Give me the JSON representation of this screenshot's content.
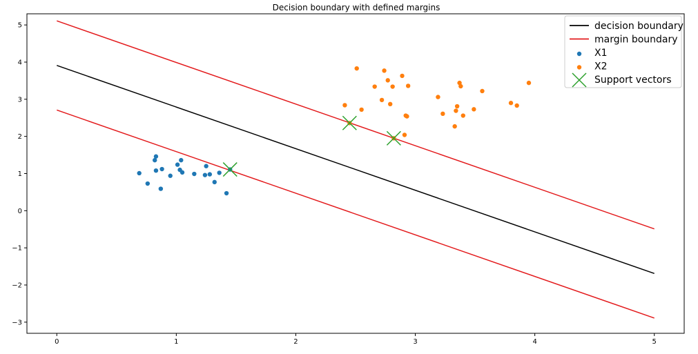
{
  "chart_data": {
    "type": "scatter",
    "title": "Decision boundary with defined margins",
    "xlabel": "",
    "ylabel": "",
    "xlim": [
      -0.25,
      5.25
    ],
    "ylim": [
      -3.3,
      5.3
    ],
    "x_ticks": [
      0,
      1,
      2,
      3,
      4,
      5
    ],
    "y_ticks": [
      5,
      4,
      3,
      2,
      1,
      0,
      -1,
      -2,
      -3
    ],
    "x_tick_labels": [
      "0",
      "1",
      "2",
      "3",
      "4",
      "5"
    ],
    "y_tick_labels": [
      "5",
      "4",
      "3",
      "2",
      "1",
      "0",
      "−1",
      "−2",
      "−3"
    ],
    "grid": false,
    "legend_position": "top-right",
    "lines": [
      {
        "name": "decision boundary",
        "color": "#000000",
        "x": [
          0,
          5
        ],
        "y": [
          3.91,
          -1.69
        ]
      },
      {
        "name": "margin boundary",
        "color": "#e31a1c",
        "x": [
          0,
          5
        ],
        "y": [
          5.11,
          -0.49
        ],
        "legend": true
      },
      {
        "name": "margin boundary",
        "color": "#e31a1c",
        "x": [
          0,
          5
        ],
        "y": [
          2.71,
          -2.89
        ],
        "legend": false
      }
    ],
    "series": [
      {
        "name": "X1",
        "color": "#1f77b4",
        "points": [
          [
            0.69,
            1.01
          ],
          [
            0.76,
            0.73
          ],
          [
            0.82,
            1.36
          ],
          [
            0.83,
            1.46
          ],
          [
            0.83,
            1.08
          ],
          [
            0.87,
            0.59
          ],
          [
            0.88,
            1.12
          ],
          [
            0.95,
            0.94
          ],
          [
            1.01,
            1.24
          ],
          [
            1.03,
            1.1
          ],
          [
            1.04,
            1.36
          ],
          [
            1.05,
            1.03
          ],
          [
            1.15,
            0.99
          ],
          [
            1.24,
            0.96
          ],
          [
            1.25,
            1.2
          ],
          [
            1.28,
            0.98
          ],
          [
            1.32,
            0.77
          ],
          [
            1.36,
            1.02
          ],
          [
            1.42,
            0.47
          ],
          [
            1.45,
            1.11
          ]
        ]
      },
      {
        "name": "X2",
        "color": "#ff7f0e",
        "points": [
          [
            2.41,
            2.84
          ],
          [
            2.45,
            2.36
          ],
          [
            2.51,
            3.83
          ],
          [
            2.55,
            2.72
          ],
          [
            2.66,
            3.34
          ],
          [
            2.72,
            2.98
          ],
          [
            2.74,
            3.77
          ],
          [
            2.77,
            3.51
          ],
          [
            2.79,
            2.87
          ],
          [
            2.81,
            3.34
          ],
          [
            2.82,
            1.95
          ],
          [
            2.89,
            3.63
          ],
          [
            2.91,
            2.04
          ],
          [
            2.92,
            2.56
          ],
          [
            2.93,
            2.54
          ],
          [
            2.94,
            3.36
          ],
          [
            3.19,
            3.06
          ],
          [
            3.23,
            2.61
          ],
          [
            3.33,
            2.27
          ],
          [
            3.34,
            2.69
          ],
          [
            3.35,
            2.81
          ],
          [
            3.37,
            3.44
          ],
          [
            3.38,
            3.35
          ],
          [
            3.4,
            2.56
          ],
          [
            3.49,
            2.73
          ],
          [
            3.56,
            3.22
          ],
          [
            3.8,
            2.9
          ],
          [
            3.85,
            2.83
          ],
          [
            3.95,
            3.44
          ]
        ]
      },
      {
        "name": "Support vectors",
        "color": "#2ca02c",
        "marker": "x",
        "points": [
          [
            1.45,
            1.11
          ],
          [
            2.45,
            2.36
          ],
          [
            2.82,
            1.95
          ]
        ]
      }
    ],
    "legend": [
      "decision boundary",
      "margin boundary",
      "X1",
      "X2",
      "Support vectors"
    ]
  }
}
